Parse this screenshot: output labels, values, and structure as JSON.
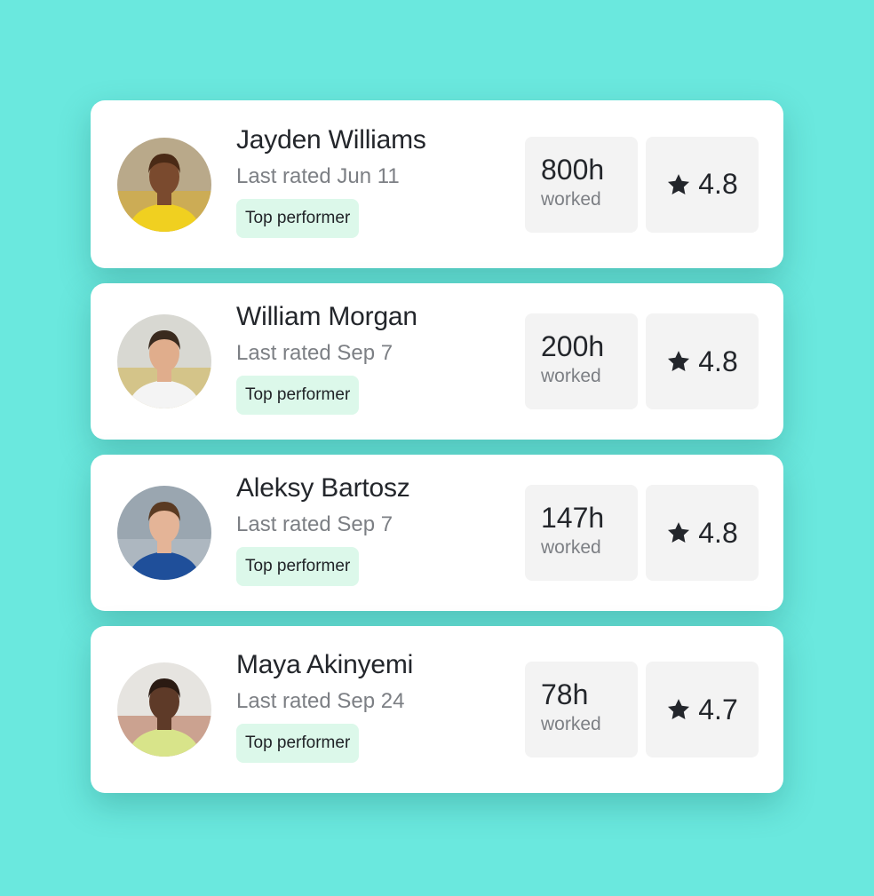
{
  "colors": {
    "background": "#6ae8de",
    "badge": "#dcf8ea",
    "stat_box": "#f3f3f3"
  },
  "workers": [
    {
      "name": "Jayden Williams",
      "last_rated": "Last rated Jun 11",
      "badge": "Top performer",
      "hours": "800h",
      "hours_label": "worked",
      "rating": "4.8",
      "rating_icon": "star-icon"
    },
    {
      "name": "William Morgan",
      "last_rated": "Last rated Sep 7",
      "badge": "Top performer",
      "hours": "200h",
      "hours_label": "worked",
      "rating": "4.8",
      "rating_icon": "star-icon"
    },
    {
      "name": "Aleksy Bartosz",
      "last_rated": "Last rated Sep 7",
      "badge": "Top performer",
      "hours": "147h",
      "hours_label": "worked",
      "rating": "4.8",
      "rating_icon": "star-icon"
    },
    {
      "name": "Maya Akinyemi",
      "last_rated": "Last rated Sep 24",
      "badge": "Top performer",
      "hours": "78h",
      "hours_label": "worked",
      "rating": "4.7",
      "rating_icon": "star-icon"
    }
  ]
}
